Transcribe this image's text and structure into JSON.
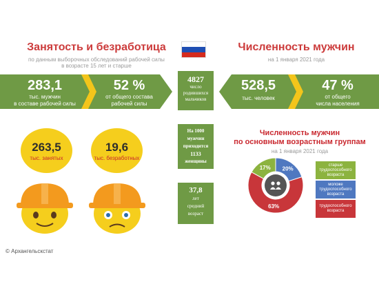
{
  "left_section": {
    "title": "Занятость и безработица",
    "subtitle_line1": "по данным выборочных обследований рабочей силы",
    "subtitle_line2": "в возрасте 15 лет и старше"
  },
  "right_section": {
    "title": "Численность мужчин",
    "subtitle": "на 1 января 2021 года"
  },
  "flag": {
    "colors": [
      "#ffffff",
      "#1f4fb3",
      "#d52b1e"
    ]
  },
  "employment_row": {
    "value1": "283,1",
    "label1_line1": "тыс. мужчин",
    "label1_line2": "в составе рабочей силы",
    "value2": "52 %",
    "label2_line1": "от общего состава",
    "label2_line2": "рабочей силы"
  },
  "population_row": {
    "value1": "528,5",
    "label1": "тыс. человек",
    "value2": "47 %",
    "label2_line1": "от общего",
    "label2_line2": "числа населения"
  },
  "center_boxes": {
    "births_value": "4827",
    "births_line1": "число",
    "births_line2": "родившихся",
    "births_line3": "мальчиков",
    "ratio_line1": "На 1000",
    "ratio_line2": "мужчин",
    "ratio_line3": "приходится",
    "ratio_value": "1133",
    "ratio_line4": "женщины",
    "age_value": "37,8",
    "age_line1": "лет",
    "age_line2": "средний",
    "age_line3": "возраст"
  },
  "employed": {
    "value": "263,5",
    "label": "тыс. занятых"
  },
  "unemployed": {
    "value": "19,6",
    "label": "тыс. безработных"
  },
  "age_groups": {
    "title_line1": "Численность мужчин",
    "title_line2": "по основным возрастным группам",
    "subtitle": "на 1 января 2021 года",
    "slices": [
      {
        "label": "17%",
        "value": 17,
        "color": "#8cb33f"
      },
      {
        "label": "20%",
        "value": 20,
        "color": "#4f78c0"
      },
      {
        "label": "63%",
        "value": 63,
        "color": "#c8363a"
      }
    ],
    "legend": [
      {
        "line1": "старше",
        "line2": "трудоспособного",
        "line3": "возраста",
        "color": "#8cb33f"
      },
      {
        "line1": "моложе",
        "line2": "трудоспособного",
        "line3": "возраста",
        "color": "#4f78c0"
      },
      {
        "line1": "трудоспособного",
        "line2": "возраста",
        "line3": "",
        "color": "#c8363a"
      }
    ]
  },
  "footer": {
    "copyright": "© Архангельскстат"
  },
  "colors": {
    "green": "#6f9a45",
    "green_light": "#8db25a",
    "red_title": "#cc3b3b",
    "yellow": "#f5ce1d",
    "arrow_yellow": "#f3c51b"
  }
}
